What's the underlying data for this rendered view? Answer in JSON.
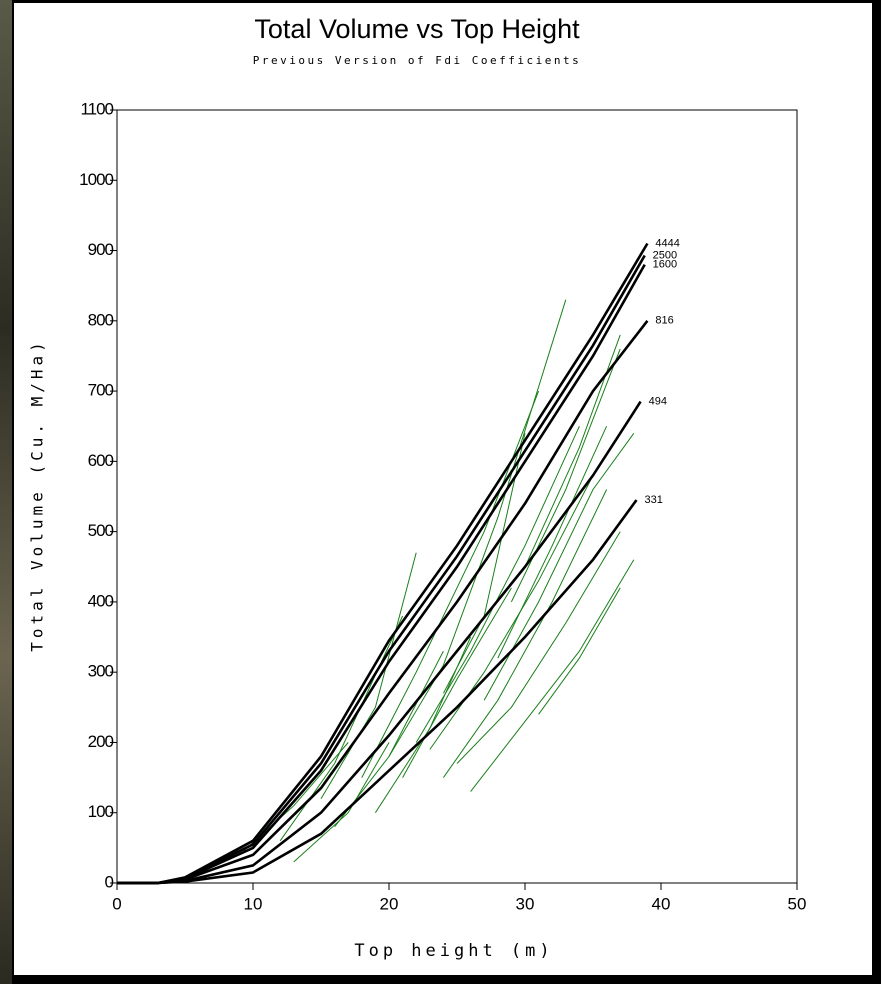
{
  "chart_data": {
    "type": "line",
    "title": "Total Volume vs Top Height",
    "subtitle": "Previous Version of Fdi Coefficients",
    "x_label": "Top height (m)",
    "y_label": "Total Volume (Cu. M/Ha)",
    "xlim": [
      0,
      50
    ],
    "xticks": [
      0,
      10,
      20,
      30,
      40,
      50
    ],
    "ylim": [
      0,
      1100
    ],
    "yticks": [
      0,
      100,
      200,
      300,
      400,
      500,
      600,
      700,
      800,
      900,
      1000,
      1100
    ],
    "series": [
      {
        "name": "4444",
        "color": "#000000",
        "x": [
          0,
          3,
          5,
          10,
          15,
          20,
          25,
          30,
          35,
          39
        ],
        "values": [
          0,
          0,
          8,
          60,
          180,
          345,
          480,
          630,
          780,
          910
        ]
      },
      {
        "name": "2500",
        "color": "#000000",
        "x": [
          0,
          3,
          5,
          10,
          15,
          20,
          25,
          30,
          35,
          38.8
        ],
        "values": [
          0,
          0,
          7,
          55,
          170,
          330,
          465,
          615,
          765,
          893
        ]
      },
      {
        "name": "1600",
        "color": "#000000",
        "x": [
          0,
          3,
          5,
          10,
          15,
          20,
          25,
          30,
          35,
          38.8
        ],
        "values": [
          0,
          0,
          6,
          50,
          160,
          315,
          450,
          600,
          750,
          880
        ]
      },
      {
        "name": "816",
        "color": "#000000",
        "x": [
          0,
          3,
          5,
          10,
          15,
          20,
          25,
          30,
          35,
          39
        ],
        "values": [
          0,
          0,
          5,
          40,
          135,
          270,
          400,
          540,
          700,
          800
        ]
      },
      {
        "name": "494",
        "color": "#000000",
        "x": [
          0,
          3,
          5,
          10,
          15,
          20,
          25,
          30,
          35,
          38.5
        ],
        "values": [
          0,
          0,
          3,
          25,
          100,
          210,
          330,
          450,
          580,
          685
        ]
      },
      {
        "name": "331",
        "color": "#000000",
        "x": [
          0,
          3,
          5,
          10,
          15,
          20,
          25,
          30,
          35,
          38.2
        ],
        "values": [
          0,
          0,
          2,
          15,
          70,
          160,
          250,
          350,
          460,
          545
        ]
      },
      {
        "color": "#1a7f1a",
        "x": [
          9,
          13,
          17
        ],
        "values": [
          40,
          110,
          200
        ]
      },
      {
        "color": "#1a7f1a",
        "x": [
          12,
          16,
          21
        ],
        "values": [
          60,
          170,
          380
        ]
      },
      {
        "color": "#1a7f1a",
        "x": [
          15,
          19,
          22
        ],
        "values": [
          120,
          250,
          470
        ]
      },
      {
        "color": "#1a7f1a",
        "x": [
          18,
          22,
          27,
          31
        ],
        "values": [
          150,
          300,
          500,
          700
        ]
      },
      {
        "color": "#1a7f1a",
        "x": [
          20,
          24,
          28,
          33
        ],
        "values": [
          180,
          310,
          520,
          830
        ]
      },
      {
        "color": "#1a7f1a",
        "x": [
          22,
          26,
          30,
          34
        ],
        "values": [
          200,
          330,
          480,
          650
        ]
      },
      {
        "color": "#1a7f1a",
        "x": [
          23,
          27,
          31,
          35
        ],
        "values": [
          190,
          300,
          430,
          580
        ]
      },
      {
        "color": "#1a7f1a",
        "x": [
          24,
          28,
          32,
          36
        ],
        "values": [
          150,
          260,
          400,
          560
        ]
      },
      {
        "color": "#1a7f1a",
        "x": [
          25,
          29,
          33,
          37
        ],
        "values": [
          170,
          250,
          370,
          500
        ]
      },
      {
        "color": "#1a7f1a",
        "x": [
          26,
          30,
          34,
          38
        ],
        "values": [
          130,
          230,
          330,
          460
        ]
      },
      {
        "color": "#1a7f1a",
        "x": [
          27,
          31,
          35,
          38
        ],
        "values": [
          260,
          400,
          560,
          640
        ]
      },
      {
        "color": "#1a7f1a",
        "x": [
          28,
          32,
          36
        ],
        "values": [
          320,
          480,
          650
        ]
      },
      {
        "color": "#1a7f1a",
        "x": [
          29,
          33,
          37
        ],
        "values": [
          400,
          560,
          760
        ]
      },
      {
        "color": "#1a7f1a",
        "x": [
          30,
          34,
          37
        ],
        "values": [
          450,
          620,
          780
        ]
      },
      {
        "color": "#1a7f1a",
        "x": [
          21,
          25,
          29
        ],
        "values": [
          150,
          290,
          420
        ]
      },
      {
        "color": "#1a7f1a",
        "x": [
          16,
          20,
          24
        ],
        "values": [
          80,
          180,
          330
        ]
      },
      {
        "color": "#1a7f1a",
        "x": [
          19,
          23,
          26
        ],
        "values": [
          100,
          220,
          350
        ]
      },
      {
        "color": "#1a7f1a",
        "x": [
          13,
          17,
          20
        ],
        "values": [
          30,
          100,
          200
        ]
      },
      {
        "color": "#1a7f1a",
        "x": [
          31,
          34,
          37
        ],
        "values": [
          240,
          320,
          420
        ]
      },
      {
        "color": "#1a7f1a",
        "x": [
          24,
          27,
          30
        ],
        "values": [
          270,
          380,
          640
        ]
      }
    ]
  }
}
